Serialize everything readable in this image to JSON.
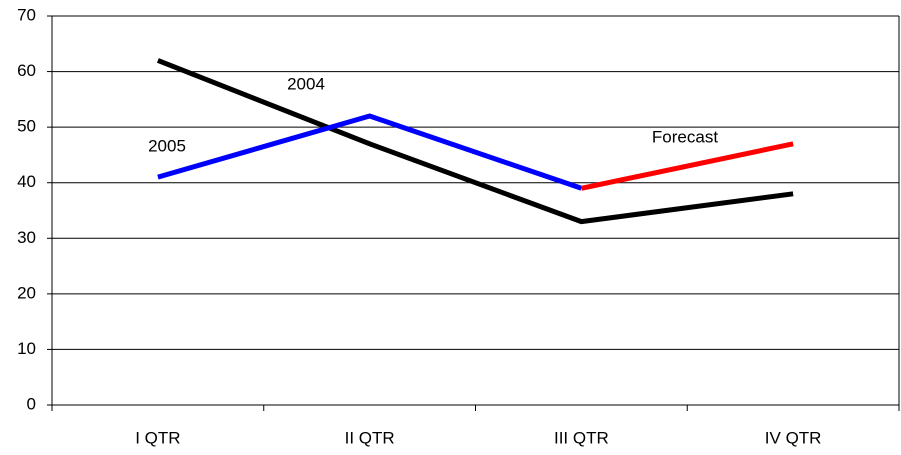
{
  "chart_data": {
    "type": "line",
    "categories": [
      "I QTR",
      "II QTR",
      "III QTR",
      "IV QTR"
    ],
    "series": [
      {
        "name": "2004",
        "color": "#000000",
        "values": [
          62,
          47,
          33,
          38
        ]
      },
      {
        "name": "2005",
        "color": "#0000ff",
        "values": [
          41,
          52,
          39,
          null
        ]
      },
      {
        "name": "Forecast",
        "color": "#ff0000",
        "values": [
          null,
          null,
          39,
          47
        ]
      }
    ],
    "ylim": [
      0,
      70
    ],
    "yticks": [
      0,
      10,
      20,
      30,
      40,
      50,
      60,
      70
    ],
    "grid": true
  }
}
